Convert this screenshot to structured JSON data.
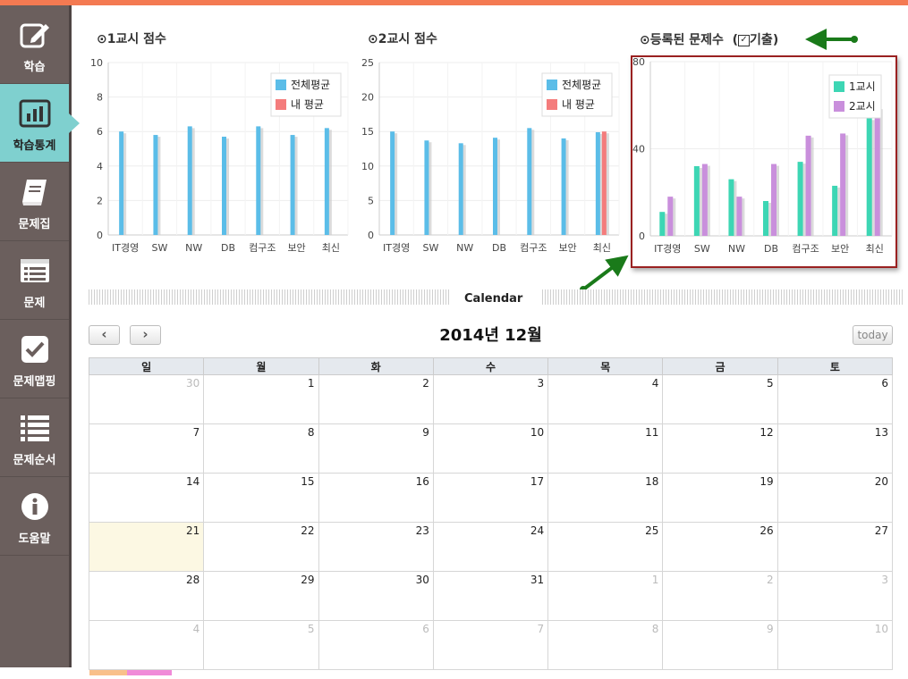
{
  "sidebar": {
    "items": [
      {
        "label": "학습",
        "icon": "edit-icon",
        "active": false
      },
      {
        "label": "학습통계",
        "icon": "bar-chart-icon",
        "active": true
      },
      {
        "label": "문제집",
        "icon": "book-icon",
        "active": false
      },
      {
        "label": "문제",
        "icon": "list-icon",
        "active": false
      },
      {
        "label": "문제맵핑",
        "icon": "check-icon",
        "active": false
      },
      {
        "label": "문제순서",
        "icon": "ordered-list-icon",
        "active": false
      },
      {
        "label": "도움말",
        "icon": "info-icon",
        "active": false
      }
    ]
  },
  "charts": {
    "chart1_title": "1교시 점수",
    "chart2_title": "2교시 점수",
    "chart3_title": "등록된 문제수",
    "chart3_checkbox_label": "기출",
    "chart3_checkbox_checked": true
  },
  "chart_data": [
    {
      "type": "bar",
      "title": "1교시 점수",
      "categories": [
        "IT경영",
        "SW",
        "NW",
        "DB",
        "컴구조",
        "보안",
        "최신"
      ],
      "ylim": [
        0,
        10
      ],
      "yticks": [
        0,
        2,
        4,
        6,
        8,
        10
      ],
      "legend": "top-right",
      "series": [
        {
          "name": "전체평균",
          "color": "#5bbde8",
          "values": [
            6.0,
            5.8,
            6.3,
            5.7,
            6.3,
            5.8,
            6.2
          ]
        },
        {
          "name": "내 평균",
          "color": "#f47c7c",
          "values": [
            0,
            0,
            0,
            0,
            0,
            0,
            0
          ]
        }
      ]
    },
    {
      "type": "bar",
      "title": "2교시 점수",
      "categories": [
        "IT경영",
        "SW",
        "NW",
        "DB",
        "컴구조",
        "보안",
        "최신"
      ],
      "ylim": [
        0,
        25
      ],
      "yticks": [
        0,
        5,
        10,
        15,
        20,
        25
      ],
      "legend": "top-right",
      "series": [
        {
          "name": "전체평균",
          "color": "#5bbde8",
          "values": [
            15.0,
            13.7,
            13.3,
            14.1,
            15.5,
            14.0,
            14.9
          ]
        },
        {
          "name": "내 평균",
          "color": "#f47c7c",
          "values": [
            0,
            0,
            0,
            0,
            0,
            0,
            15.0
          ]
        }
      ]
    },
    {
      "type": "bar",
      "title": "등록된 문제수",
      "categories": [
        "IT경영",
        "SW",
        "NW",
        "DB",
        "컴구조",
        "보안",
        "최신"
      ],
      "ylim": [
        0,
        80
      ],
      "yticks": [
        0,
        40,
        80
      ],
      "legend": "top-right",
      "series": [
        {
          "name": "1교시",
          "color": "#3dd6b4",
          "values": [
            11,
            32,
            26,
            16,
            34,
            23,
            54
          ]
        },
        {
          "name": "2교시",
          "color": "#c98fdc",
          "values": [
            18,
            33,
            18,
            33,
            46,
            47,
            59
          ]
        }
      ]
    }
  ],
  "calendar": {
    "section_label": "Calendar",
    "title": "2014년 12월",
    "prev_icon": "chevron-left-icon",
    "next_icon": "chevron-right-icon",
    "today_label": "today",
    "weekdays": [
      "일",
      "월",
      "화",
      "수",
      "목",
      "금",
      "토"
    ],
    "weeks": [
      [
        {
          "d": "30",
          "o": true
        },
        {
          "d": "1"
        },
        {
          "d": "2"
        },
        {
          "d": "3"
        },
        {
          "d": "4"
        },
        {
          "d": "5"
        },
        {
          "d": "6"
        }
      ],
      [
        {
          "d": "7"
        },
        {
          "d": "8"
        },
        {
          "d": "9"
        },
        {
          "d": "10"
        },
        {
          "d": "11"
        },
        {
          "d": "12"
        },
        {
          "d": "13"
        }
      ],
      [
        {
          "d": "14"
        },
        {
          "d": "15"
        },
        {
          "d": "16"
        },
        {
          "d": "17"
        },
        {
          "d": "18"
        },
        {
          "d": "19"
        },
        {
          "d": "20"
        }
      ],
      [
        {
          "d": "21",
          "t": true
        },
        {
          "d": "22"
        },
        {
          "d": "23"
        },
        {
          "d": "24"
        },
        {
          "d": "25"
        },
        {
          "d": "26"
        },
        {
          "d": "27"
        }
      ],
      [
        {
          "d": "28"
        },
        {
          "d": "29"
        },
        {
          "d": "30"
        },
        {
          "d": "31"
        },
        {
          "d": "1",
          "o": true
        },
        {
          "d": "2",
          "o": true
        },
        {
          "d": "3",
          "o": true
        }
      ],
      [
        {
          "d": "4",
          "o": true
        },
        {
          "d": "5",
          "o": true
        },
        {
          "d": "6",
          "o": true
        },
        {
          "d": "7",
          "o": true
        },
        {
          "d": "8",
          "o": true
        },
        {
          "d": "9",
          "o": true
        },
        {
          "d": "10",
          "o": true
        }
      ]
    ]
  },
  "colors": {
    "accent_top": "#f47a52",
    "sidebar_bg": "#6b5f5d",
    "sidebar_active": "#7fd0cf",
    "highlight_border": "#9a2121",
    "annotation_arrow": "#1a7a1a"
  }
}
